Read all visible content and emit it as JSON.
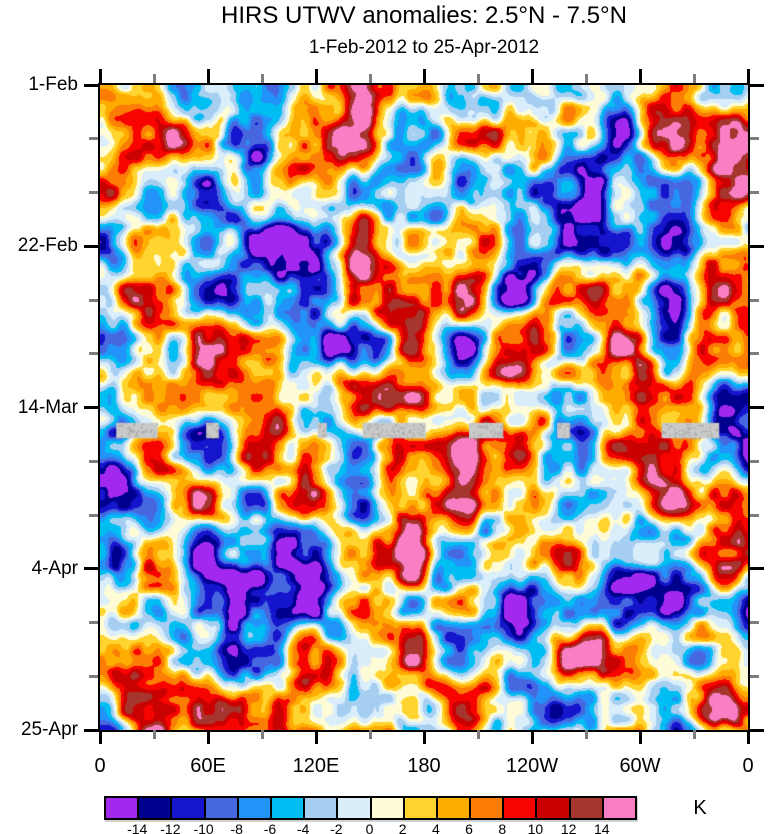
{
  "chart_data": {
    "type": "heatmap",
    "title": "HIRS UTWV anomalies: 2.5°N - 7.5°N",
    "subtitle": "1-Feb-2012 to 25-Apr-2012",
    "x_axis": {
      "range_degrees": [
        0,
        360
      ],
      "major_ticks_degrees": [
        0,
        60,
        120,
        180,
        240,
        300,
        360
      ],
      "tick_labels": [
        "0",
        "60E",
        "120E",
        "180",
        "120W",
        "60W",
        "0"
      ],
      "minor_ticks_degrees": [
        30,
        90,
        150,
        210,
        270,
        330
      ]
    },
    "y_axis": {
      "range_days": [
        0,
        84
      ],
      "major_ticks_days": [
        0,
        21,
        42,
        63,
        84
      ],
      "tick_labels": [
        "1-Feb",
        "22-Feb",
        "14-Mar",
        "4-Apr",
        "25-Apr"
      ],
      "minor_ticks_days": [
        7,
        14,
        28,
        35,
        49,
        56,
        70,
        77
      ]
    },
    "colorbar": {
      "unit_label": "K",
      "level_step": 2,
      "boundary_labels": [
        "-14",
        "-12",
        "-10",
        "-8",
        "-6",
        "-4",
        "-2",
        "0",
        "2",
        "4",
        "6",
        "8",
        "10",
        "12",
        "14"
      ],
      "band_colors": [
        "#a228f0",
        "#00008e",
        "#1515ce",
        "#4667df",
        "#2293f8",
        "#00bef2",
        "#a5cef0",
        "#d9edfb",
        "#fefcd6",
        "#ffd42e",
        "#ffac00",
        "#fb7d05",
        "#f80400",
        "#c90101",
        "#a5352d",
        "#fa7ec3"
      ]
    },
    "missing_data": {
      "color": "#c9c9c9",
      "speckle_color": "#a6a6a6",
      "day_range": [
        44.0,
        46.0
      ],
      "segments_degrees": [
        [
          9,
          32
        ],
        [
          59,
          66
        ],
        [
          121,
          126
        ],
        [
          146,
          181
        ],
        [
          205,
          224
        ],
        [
          254,
          261
        ],
        [
          312,
          344
        ]
      ]
    },
    "axis_style": {
      "major_tick_color": "#000000",
      "minor_tick_color": "#7d7d7d"
    }
  }
}
